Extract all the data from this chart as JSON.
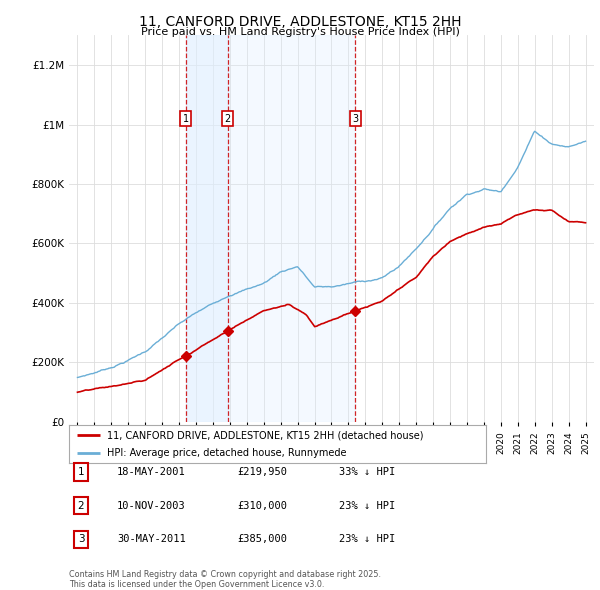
{
  "title": "11, CANFORD DRIVE, ADDLESTONE, KT15 2HH",
  "subtitle": "Price paid vs. HM Land Registry's House Price Index (HPI)",
  "transactions": [
    {
      "num": 1,
      "date": 2001.38,
      "price": 219950,
      "label": "1"
    },
    {
      "num": 2,
      "date": 2003.86,
      "price": 310000,
      "label": "2"
    },
    {
      "num": 3,
      "date": 2011.41,
      "price": 385000,
      "label": "3"
    }
  ],
  "transaction_dates_str": [
    "18-MAY-2001",
    "10-NOV-2003",
    "30-MAY-2011"
  ],
  "transaction_prices_str": [
    "£219,950",
    "£310,000",
    "£385,000"
  ],
  "transaction_notes": [
    "33% ↓ HPI",
    "23% ↓ HPI",
    "23% ↓ HPI"
  ],
  "hpi_color": "#6aaed6",
  "price_color": "#cc0000",
  "vline_color": "#cc0000",
  "shade_color": "#ddeeff",
  "background_color": "#ffffff",
  "grid_color": "#dddddd",
  "ylim": [
    0,
    1300000
  ],
  "xlim": [
    1994.5,
    2025.5
  ],
  "legend_label_price": "11, CANFORD DRIVE, ADDLESTONE, KT15 2HH (detached house)",
  "legend_label_hpi": "HPI: Average price, detached house, Runnymede",
  "footer_text": "Contains HM Land Registry data © Crown copyright and database right 2025.\nThis data is licensed under the Open Government Licence v3.0.",
  "yticks": [
    0,
    200000,
    400000,
    600000,
    800000,
    1000000,
    1200000
  ],
  "ytick_labels": [
    "£0",
    "£200K",
    "£400K",
    "£600K",
    "£800K",
    "£1M",
    "£1.2M"
  ],
  "hpi_anchors_x": [
    1995,
    1996,
    1997,
    1998,
    1999,
    2000,
    2001,
    2002,
    2003,
    2004,
    2005,
    2006,
    2007,
    2008,
    2009,
    2010,
    2011,
    2012,
    2013,
    2014,
    2015,
    2016,
    2017,
    2018,
    2019,
    2020,
    2021,
    2022,
    2023,
    2024,
    2025
  ],
  "hpi_anchors_y": [
    148000,
    165000,
    185000,
    210000,
    240000,
    285000,
    330000,
    365000,
    395000,
    430000,
    450000,
    470000,
    510000,
    530000,
    460000,
    460000,
    470000,
    480000,
    490000,
    530000,
    590000,
    660000,
    730000,
    780000,
    800000,
    790000,
    880000,
    1000000,
    960000,
    950000,
    970000
  ],
  "price_anchors_x": [
    1995,
    1997,
    1999,
    2001.38,
    2003.86,
    2006,
    2007.5,
    2008.5,
    2009,
    2010,
    2011.41,
    2013,
    2015,
    2016,
    2017,
    2018,
    2019,
    2020,
    2021,
    2022,
    2023,
    2024,
    2025
  ],
  "price_anchors_y": [
    100000,
    115000,
    135000,
    219950,
    310000,
    380000,
    400000,
    370000,
    330000,
    355000,
    385000,
    415000,
    490000,
    560000,
    610000,
    640000,
    660000,
    670000,
    700000,
    720000,
    720000,
    680000,
    680000
  ]
}
